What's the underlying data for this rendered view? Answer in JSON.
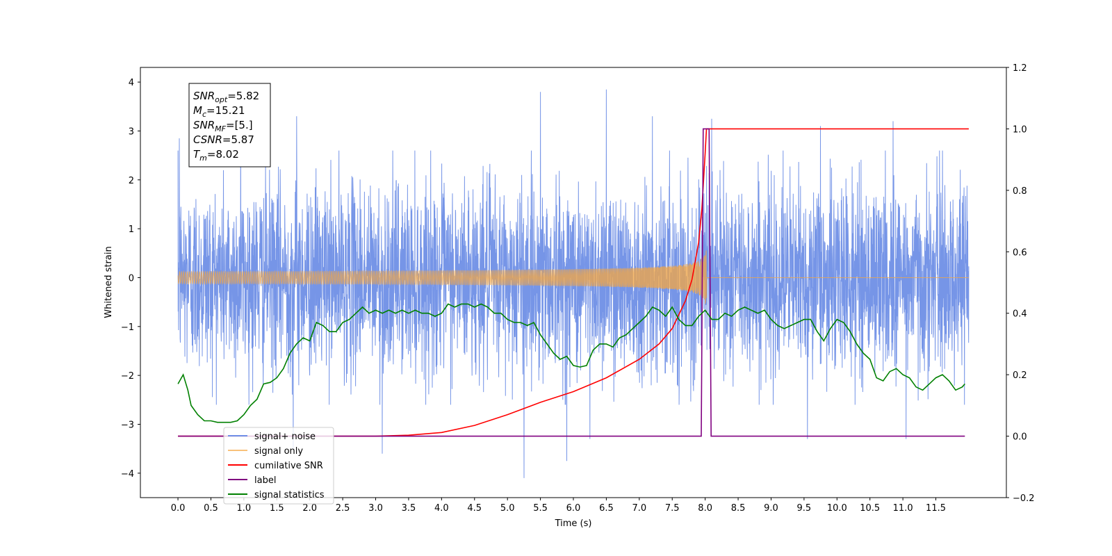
{
  "chart_data": {
    "type": "line",
    "xlabel": "Time (s)",
    "ylabel_left": "Whitened strain",
    "ylabel_right": "",
    "xlim": [
      -0.57,
      12.57
    ],
    "ylim_left": [
      -4.5,
      4.3
    ],
    "ylim_right": [
      -0.2,
      1.2
    ],
    "grid": false,
    "legend_placement": "lower-left",
    "x_ticks": [
      0.0,
      0.5,
      1.0,
      1.5,
      2.0,
      2.5,
      3.0,
      3.5,
      4.0,
      4.5,
      5.0,
      5.5,
      6.0,
      6.5,
      7.0,
      7.5,
      8.0,
      8.5,
      9.0,
      9.5,
      10.0,
      10.5,
      11.0,
      11.5
    ],
    "x_tick_labels": [
      "0.0",
      "0.5",
      "1.0",
      "1.5",
      "2.0",
      "2.5",
      "3.0",
      "3.5",
      "4.0",
      "4.5",
      "5.0",
      "5.5",
      "6.0",
      "6.5",
      "7.0",
      "7.5",
      "8.0",
      "8.5",
      "9.0",
      "9.5",
      "10.0",
      "10.5",
      "11.0",
      "11.5"
    ],
    "y_ticks_left": [
      -4,
      -3,
      -2,
      -1,
      0,
      1,
      2,
      3,
      4
    ],
    "y_tick_labels_left": [
      "−4",
      "−3",
      "−2",
      "−1",
      "0",
      "1",
      "2",
      "3",
      "4"
    ],
    "y_ticks_right": [
      -0.2,
      0.0,
      0.2,
      0.4,
      0.6,
      0.8,
      1.0,
      1.2
    ],
    "y_tick_labels_right": [
      "−0.2",
      "0.0",
      "0.2",
      "0.4",
      "0.6",
      "0.8",
      "1.0",
      "1.2"
    ],
    "info_box": {
      "lines": [
        {
          "sym": "SNR",
          "sub": "opt",
          "value": "=5.82"
        },
        {
          "sym": "M",
          "sub": "c",
          "value": "=15.21"
        },
        {
          "sym": "SNR",
          "sub": "MF",
          "value": "=[5.]"
        },
        {
          "sym": "CSNR",
          "sub": "",
          "value": "=5.87"
        },
        {
          "sym": "T",
          "sub": "m",
          "value": "=8.02"
        }
      ]
    },
    "series": [
      {
        "name": "signal+ noise",
        "axis": "left",
        "color": "#6f8fe6",
        "kind": "noise",
        "x_range": [
          0.0,
          12.0
        ],
        "std": 0.95,
        "peaks": [
          {
            "x": 0.02,
            "y": 2.85
          },
          {
            "x": 0.95,
            "y": 3.2
          },
          {
            "x": 1.8,
            "y": 3.3
          },
          {
            "x": 1.75,
            "y": -3.5
          },
          {
            "x": 3.1,
            "y": -3.6
          },
          {
            "x": 5.25,
            "y": -4.1
          },
          {
            "x": 5.5,
            "y": 3.8
          },
          {
            "x": 5.9,
            "y": -3.75
          },
          {
            "x": 6.25,
            "y": -3.3
          },
          {
            "x": 6.5,
            "y": 3.85
          },
          {
            "x": 7.2,
            "y": 3.3
          },
          {
            "x": 8.1,
            "y": 3.25
          },
          {
            "x": 9.75,
            "y": 3.1
          },
          {
            "x": 9.55,
            "y": -3.3
          },
          {
            "x": 10.85,
            "y": 3.2
          },
          {
            "x": 11.05,
            "y": -3.3
          }
        ]
      },
      {
        "name": "signal only",
        "axis": "left",
        "color": "#f5a742",
        "kind": "chirp",
        "x_range": [
          0.0,
          12.0
        ],
        "merger_time": 8.02,
        "peak_amplitude": 0.55
      },
      {
        "name": "cumilative SNR",
        "axis": "right",
        "color": "#ff0000",
        "x": [
          0.0,
          3.0,
          3.5,
          4.0,
          4.5,
          5.0,
          5.5,
          6.0,
          6.5,
          7.0,
          7.3,
          7.5,
          7.7,
          7.8,
          7.9,
          7.95,
          8.0,
          8.02,
          8.05,
          12.0
        ],
        "y": [
          0.0,
          0.0,
          0.003,
          0.012,
          0.035,
          0.07,
          0.11,
          0.145,
          0.19,
          0.25,
          0.3,
          0.35,
          0.44,
          0.51,
          0.63,
          0.74,
          0.92,
          1.0,
          1.0,
          1.0
        ]
      },
      {
        "name": "label",
        "axis": "right",
        "color": "#800080",
        "x": [
          0.0,
          7.94,
          7.97,
          8.06,
          8.09,
          11.94
        ],
        "y": [
          0.0,
          0.0,
          1.0,
          1.0,
          0.0,
          0.0
        ]
      },
      {
        "name": "signal statistics",
        "axis": "right",
        "color": "#008000",
        "x": [
          0.0,
          0.08,
          0.15,
          0.2,
          0.3,
          0.4,
          0.5,
          0.6,
          0.7,
          0.8,
          0.9,
          1.0,
          1.1,
          1.2,
          1.3,
          1.4,
          1.5,
          1.6,
          1.7,
          1.8,
          1.9,
          2.0,
          2.1,
          2.2,
          2.3,
          2.4,
          2.5,
          2.6,
          2.7,
          2.8,
          2.9,
          3.0,
          3.1,
          3.2,
          3.3,
          3.4,
          3.5,
          3.6,
          3.7,
          3.8,
          3.9,
          4.0,
          4.1,
          4.2,
          4.3,
          4.4,
          4.5,
          4.6,
          4.7,
          4.8,
          4.9,
          5.0,
          5.1,
          5.2,
          5.3,
          5.4,
          5.5,
          5.6,
          5.7,
          5.8,
          5.9,
          6.0,
          6.1,
          6.2,
          6.3,
          6.4,
          6.5,
          6.6,
          6.7,
          6.8,
          6.9,
          7.0,
          7.1,
          7.2,
          7.3,
          7.4,
          7.5,
          7.6,
          7.7,
          7.8,
          7.9,
          8.0,
          8.1,
          8.2,
          8.3,
          8.4,
          8.5,
          8.6,
          8.7,
          8.8,
          8.9,
          9.0,
          9.1,
          9.2,
          9.3,
          9.4,
          9.5,
          9.6,
          9.7,
          9.8,
          9.9,
          10.0,
          10.1,
          10.2,
          10.3,
          10.4,
          10.5,
          10.6,
          10.7,
          10.8,
          10.9,
          11.0,
          11.1,
          11.2,
          11.3,
          11.4,
          11.5,
          11.6,
          11.7,
          11.8,
          11.9,
          11.94
        ],
        "y": [
          0.17,
          0.2,
          0.15,
          0.1,
          0.07,
          0.05,
          0.05,
          0.045,
          0.045,
          0.045,
          0.05,
          0.07,
          0.1,
          0.12,
          0.17,
          0.175,
          0.19,
          0.22,
          0.27,
          0.3,
          0.32,
          0.31,
          0.37,
          0.36,
          0.34,
          0.34,
          0.37,
          0.38,
          0.4,
          0.42,
          0.4,
          0.41,
          0.4,
          0.41,
          0.4,
          0.41,
          0.4,
          0.41,
          0.4,
          0.4,
          0.39,
          0.4,
          0.43,
          0.42,
          0.43,
          0.43,
          0.42,
          0.43,
          0.42,
          0.4,
          0.4,
          0.38,
          0.37,
          0.37,
          0.36,
          0.37,
          0.33,
          0.3,
          0.27,
          0.25,
          0.26,
          0.23,
          0.225,
          0.23,
          0.28,
          0.3,
          0.3,
          0.29,
          0.32,
          0.33,
          0.35,
          0.37,
          0.39,
          0.42,
          0.41,
          0.39,
          0.42,
          0.38,
          0.36,
          0.36,
          0.39,
          0.41,
          0.38,
          0.38,
          0.4,
          0.39,
          0.41,
          0.42,
          0.41,
          0.4,
          0.41,
          0.38,
          0.36,
          0.35,
          0.36,
          0.37,
          0.38,
          0.38,
          0.34,
          0.31,
          0.35,
          0.38,
          0.37,
          0.34,
          0.3,
          0.27,
          0.25,
          0.19,
          0.18,
          0.21,
          0.22,
          0.2,
          0.19,
          0.16,
          0.15,
          0.17,
          0.19,
          0.2,
          0.18,
          0.15,
          0.16,
          0.17
        ]
      }
    ]
  }
}
